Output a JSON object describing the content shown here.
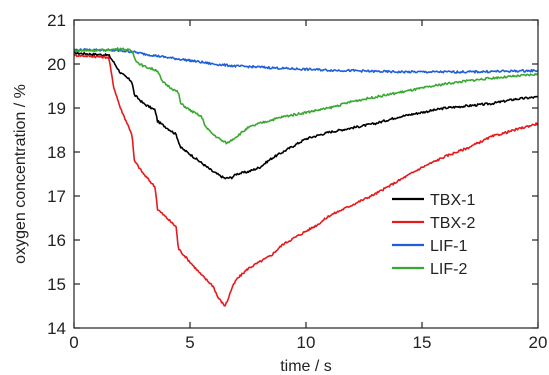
{
  "chart_data": {
    "type": "line",
    "title": "",
    "xlabel": "time / s",
    "ylabel": "oxygen concentration / %",
    "xlim": [
      0,
      20
    ],
    "ylim": [
      14,
      21
    ],
    "xticks": [
      0,
      5,
      10,
      15,
      20
    ],
    "yticks": [
      14,
      15,
      16,
      17,
      18,
      19,
      20,
      21
    ],
    "grid": false,
    "legend_position": "inside-right",
    "series": [
      {
        "name": "TBX-1",
        "color": "#000000",
        "x": [
          0,
          1.5,
          1.7,
          2.0,
          2.5,
          2.6,
          3.0,
          3.5,
          3.6,
          4.0,
          4.4,
          4.6,
          5.0,
          5.5,
          6.0,
          6.5,
          6.8,
          7.0,
          7.5,
          8.0,
          8.5,
          9.0,
          9.5,
          10.0,
          11.0,
          12.0,
          13.0,
          14.0,
          15.0,
          16.0,
          17.0,
          18.0,
          19.0,
          20.0
        ],
        "y": [
          20.25,
          20.2,
          20.05,
          19.8,
          19.6,
          19.3,
          19.1,
          18.95,
          18.7,
          18.55,
          18.4,
          18.1,
          17.95,
          17.75,
          17.55,
          17.4,
          17.42,
          17.5,
          17.55,
          17.65,
          17.85,
          18.0,
          18.15,
          18.3,
          18.45,
          18.55,
          18.65,
          18.8,
          18.9,
          19.0,
          19.05,
          19.1,
          19.2,
          19.25
        ]
      },
      {
        "name": "TBX-2",
        "color": "#e41a1c",
        "x": [
          0,
          1.5,
          1.7,
          2.0,
          2.5,
          2.6,
          3.0,
          3.5,
          3.6,
          4.0,
          4.4,
          4.5,
          5.0,
          5.5,
          6.0,
          6.2,
          6.5,
          6.6,
          6.8,
          7.0,
          7.5,
          8.0,
          8.5,
          9.0,
          9.5,
          10.0,
          10.5,
          11.0,
          12.0,
          13.0,
          14.0,
          15.0,
          16.0,
          17.0,
          18.0,
          19.0,
          20.0
        ],
        "y": [
          20.2,
          20.15,
          19.5,
          19.0,
          18.4,
          17.8,
          17.5,
          17.2,
          16.7,
          16.5,
          16.3,
          15.8,
          15.5,
          15.2,
          14.95,
          14.7,
          14.5,
          14.6,
          14.9,
          15.1,
          15.35,
          15.5,
          15.65,
          15.9,
          16.05,
          16.2,
          16.35,
          16.55,
          16.8,
          17.05,
          17.35,
          17.65,
          17.9,
          18.1,
          18.35,
          18.5,
          18.65
        ]
      },
      {
        "name": "LIF-1",
        "color": "#1f5fd8",
        "x": [
          0,
          1,
          2,
          2.5,
          3,
          4,
          5,
          6,
          7,
          8,
          9,
          10,
          11,
          12,
          13,
          14,
          15,
          16,
          17,
          18,
          19,
          20
        ],
        "y": [
          20.32,
          20.32,
          20.3,
          20.28,
          20.23,
          20.15,
          20.08,
          20.0,
          19.95,
          19.93,
          19.9,
          19.88,
          19.86,
          19.85,
          19.83,
          19.82,
          19.82,
          19.82,
          19.82,
          19.83,
          19.84,
          19.85
        ]
      },
      {
        "name": "LIF-2",
        "color": "#3aa832",
        "x": [
          0,
          1.5,
          2.0,
          2.5,
          2.7,
          3.0,
          3.6,
          3.8,
          4.2,
          4.5,
          4.6,
          5.0,
          5.5,
          5.7,
          6.0,
          6.4,
          6.6,
          7.0,
          7.5,
          8.0,
          9.0,
          10.0,
          11.0,
          12.0,
          13.0,
          14.0,
          15.0,
          16.0,
          17.0,
          18.0,
          19.0,
          20.0
        ],
        "y": [
          20.3,
          20.32,
          20.35,
          20.3,
          20.05,
          19.95,
          19.85,
          19.6,
          19.45,
          19.35,
          19.1,
          18.95,
          18.8,
          18.55,
          18.4,
          18.25,
          18.2,
          18.35,
          18.55,
          18.65,
          18.8,
          18.9,
          19.0,
          19.15,
          19.25,
          19.35,
          19.45,
          19.55,
          19.62,
          19.68,
          19.72,
          19.77
        ]
      }
    ]
  }
}
